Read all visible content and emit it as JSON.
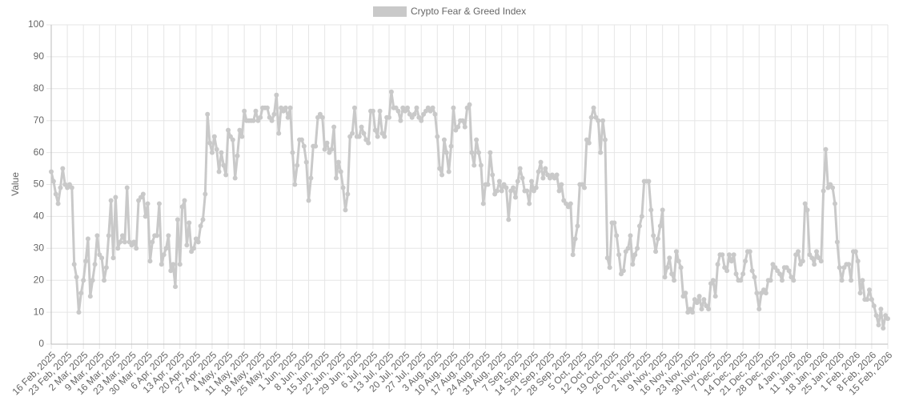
{
  "chart_data": {
    "type": "line",
    "legend": "Crypto Fear & Greed Index",
    "y_label": "Value",
    "color": "#c9c9c9",
    "grid": true,
    "ylim": [
      0,
      100
    ],
    "yticks": [
      0,
      10,
      20,
      30,
      40,
      50,
      60,
      70,
      80,
      90,
      100
    ],
    "categories": [
      "16 Feb, 2025",
      null,
      null,
      null,
      null,
      null,
      null,
      "23 Feb, 2025",
      null,
      null,
      null,
      null,
      null,
      null,
      "2 Mar, 2025",
      null,
      null,
      null,
      null,
      null,
      null,
      "9 Mar, 2025",
      null,
      null,
      null,
      null,
      null,
      null,
      "16 Mar, 2025",
      null,
      null,
      null,
      null,
      null,
      null,
      "23 Mar, 2025",
      null,
      null,
      null,
      null,
      null,
      null,
      "30 Mar, 2025",
      null,
      null,
      null,
      null,
      null,
      null,
      "6 Apr, 2025",
      null,
      null,
      null,
      null,
      null,
      null,
      "13 Apr, 2025",
      null,
      null,
      null,
      null,
      null,
      null,
      "20 Apr, 2025",
      null,
      null,
      null,
      null,
      null,
      null,
      "27 Apr, 2025",
      null,
      null,
      null,
      null,
      null,
      null,
      "4 May, 2025",
      null,
      null,
      null,
      null,
      null,
      null,
      "11 May, 2025",
      null,
      null,
      null,
      null,
      null,
      null,
      "18 May, 2025",
      null,
      null,
      null,
      null,
      null,
      null,
      "25 May, 2025",
      null,
      null,
      null,
      null,
      null,
      null,
      "1 Jun, 2025",
      null,
      null,
      null,
      null,
      null,
      null,
      "8 Jun, 2025",
      null,
      null,
      null,
      null,
      null,
      null,
      "15 Jun, 2025",
      null,
      null,
      null,
      null,
      null,
      null,
      "22 Jun, 2025",
      null,
      null,
      null,
      null,
      null,
      null,
      "29 Jun, 2025",
      null,
      null,
      null,
      null,
      null,
      null,
      "6 Jul, 2025",
      null,
      null,
      null,
      null,
      null,
      null,
      "13 Jul, 2025",
      null,
      null,
      null,
      null,
      null,
      null,
      "20 Jul, 2025",
      null,
      null,
      null,
      null,
      null,
      null,
      "27 Jul, 2025",
      null,
      null,
      null,
      null,
      null,
      null,
      "3 Aug, 2025",
      null,
      null,
      null,
      null,
      null,
      null,
      "10 Aug, 2025",
      null,
      null,
      null,
      null,
      null,
      null,
      "17 Aug, 2025",
      null,
      null,
      null,
      null,
      null,
      null,
      "24 Aug, 2025",
      null,
      null,
      null,
      null,
      null,
      null,
      "31 Aug, 2025",
      null,
      null,
      null,
      null,
      null,
      null,
      "7 Sep, 2025",
      null,
      null,
      null,
      null,
      null,
      null,
      "14 Sep, 2025",
      null,
      null,
      null,
      null,
      null,
      null,
      "21 Sep, 2025",
      null,
      null,
      null,
      null,
      null,
      null,
      "28 Sep, 2025",
      null,
      null,
      null,
      null,
      null,
      null,
      "5 Oct, 2025",
      null,
      null,
      null,
      null,
      null,
      null,
      "12 Oct, 2025",
      null,
      null,
      null,
      null,
      null,
      null,
      "19 Oct, 2025",
      null,
      null,
      null,
      null,
      null,
      null,
      "26 Oct, 2025",
      null,
      null,
      null,
      null,
      null,
      null,
      "2 Nov, 2025",
      null,
      null,
      null,
      null,
      null,
      null,
      "9 Nov, 2025",
      null,
      null,
      null,
      null,
      null,
      null,
      "16 Nov, 2025",
      null,
      null,
      null,
      null,
      null,
      null,
      "23 Nov, 2025",
      null,
      null,
      null,
      null,
      null,
      null,
      "30 Nov, 2025",
      null,
      null,
      null,
      null,
      null,
      null,
      "7 Dec, 2025",
      null,
      null,
      null,
      null,
      null,
      null,
      "14 Dec, 2025",
      null,
      null,
      null,
      null,
      null,
      null,
      "21 Dec, 2025",
      null,
      null,
      null,
      null,
      null,
      null,
      "28 Dec, 2025",
      null,
      null,
      null,
      null,
      null,
      null,
      "4 Jan, 2026",
      null,
      null,
      null,
      null,
      null,
      null,
      "11 Jan, 2026",
      null,
      null,
      null,
      null,
      null,
      null,
      "18 Jan, 2026",
      null,
      null,
      null,
      null,
      null,
      null,
      "25 Jan, 2026",
      null,
      null,
      null,
      null,
      null,
      null,
      "1 Feb, 2026",
      null,
      null,
      null,
      null,
      null,
      null,
      "8 Feb, 2026",
      null,
      null,
      null,
      null,
      null,
      null,
      "15 Feb, 2026"
    ],
    "values": [
      54,
      51,
      47,
      44,
      49,
      55,
      50,
      49,
      50,
      49,
      25,
      21,
      10,
      16,
      20,
      26,
      33,
      15,
      20,
      25,
      34,
      28,
      27,
      20,
      24,
      34,
      45,
      27,
      46,
      30,
      32,
      34,
      32,
      49,
      32,
      31,
      32,
      30,
      45,
      46,
      47,
      40,
      44,
      26,
      32,
      34,
      34,
      44,
      25,
      28,
      30,
      34,
      23,
      25,
      18,
      39,
      25,
      43,
      45,
      31,
      38,
      29,
      30,
      33,
      32,
      37,
      39,
      47,
      72,
      63,
      60,
      65,
      61,
      54,
      60,
      56,
      53,
      67,
      65,
      64,
      52,
      59,
      67,
      65,
      73,
      70,
      70,
      70,
      70,
      73,
      70,
      71,
      74,
      74,
      74,
      71,
      70,
      72,
      78,
      66,
      74,
      73,
      74,
      71,
      74,
      60,
      50,
      56,
      64,
      64,
      62,
      57,
      45,
      52,
      62,
      62,
      71,
      72,
      71,
      61,
      63,
      60,
      61,
      68,
      52,
      57,
      54,
      49,
      42,
      47,
      65,
      66,
      74,
      65,
      65,
      68,
      66,
      64,
      63,
      73,
      73,
      67,
      65,
      73,
      66,
      65,
      71,
      71,
      79,
      74,
      74,
      73,
      70,
      74,
      73,
      74,
      72,
      71,
      72,
      74,
      71,
      70,
      72,
      73,
      74,
      73,
      74,
      72,
      65,
      55,
      53,
      64,
      60,
      54,
      62,
      74,
      67,
      68,
      70,
      70,
      68,
      74,
      75,
      60,
      56,
      64,
      60,
      56,
      44,
      50,
      50,
      60,
      53,
      47,
      48,
      51,
      48,
      50,
      49,
      39,
      48,
      49,
      46,
      51,
      55,
      52,
      48,
      48,
      44,
      51,
      48,
      49,
      54,
      57,
      52,
      55,
      53,
      52,
      53,
      52,
      53,
      48,
      50,
      45,
      44,
      43,
      44,
      28,
      33,
      37,
      50,
      50,
      49,
      64,
      63,
      71,
      74,
      71,
      70,
      60,
      70,
      64,
      27,
      24,
      38,
      38,
      34,
      28,
      22,
      23,
      29,
      30,
      34,
      25,
      28,
      30,
      37,
      40,
      51,
      51,
      51,
      42,
      34,
      29,
      33,
      37,
      42,
      21,
      24,
      27,
      22,
      20,
      29,
      26,
      24,
      15,
      16,
      10,
      11,
      10,
      14,
      13,
      15,
      11,
      14,
      12,
      11,
      19,
      20,
      15,
      25,
      28,
      28,
      24,
      23,
      28,
      26,
      28,
      22,
      20,
      20,
      22,
      26,
      29,
      29,
      23,
      21,
      16,
      11,
      16,
      17,
      16,
      20,
      20,
      25,
      24,
      23,
      22,
      20,
      24,
      24,
      23,
      21,
      20,
      28,
      29,
      25,
      26,
      44,
      42,
      28,
      27,
      25,
      29,
      27,
      26,
      48,
      61,
      49,
      50,
      49,
      44,
      32,
      24,
      20,
      24,
      25,
      25,
      20,
      29,
      29,
      26,
      16,
      20,
      14,
      14,
      17,
      14,
      12,
      9,
      6,
      11,
      5,
      9,
      8
    ]
  }
}
